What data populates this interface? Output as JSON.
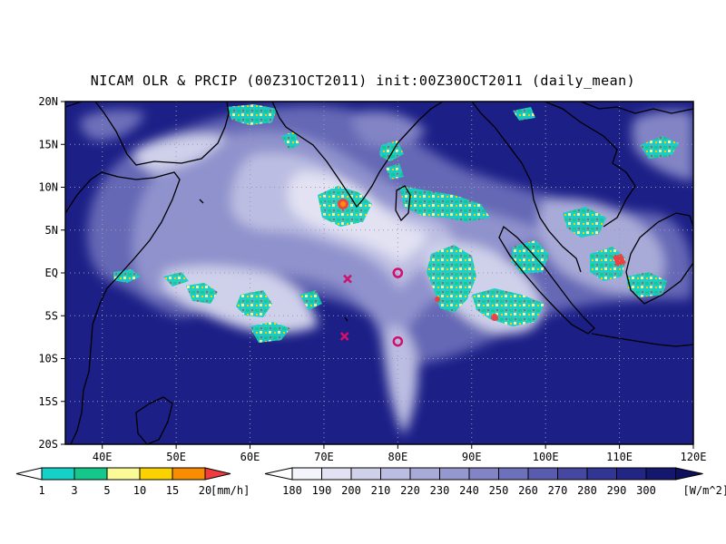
{
  "title": "NICAM OLR & PRCIP (00Z31OCT2011) init:00Z30OCT2011 (daily_mean)",
  "map": {
    "lat_labels": [
      "20N",
      "15N",
      "10N",
      "5N",
      "EQ",
      "5S",
      "10S",
      "15S",
      "20S"
    ],
    "lon_labels": [
      "40E",
      "50E",
      "60E",
      "70E",
      "80E",
      "90E",
      "100E",
      "110E",
      "120E"
    ],
    "lon_range": [
      35,
      120
    ],
    "lat_range": [
      -20,
      20
    ],
    "ocean_color": "#1c1f86",
    "markers": [
      {
        "symbol": "x",
        "lon": 73.2,
        "lat": -0.7,
        "color": "#d0106a"
      },
      {
        "symbol": "x",
        "lon": 72.8,
        "lat": -7.4,
        "color": "#d0106a"
      },
      {
        "symbol": "o",
        "lon": 80.0,
        "lat": 0.0,
        "color": "#d0106a"
      },
      {
        "symbol": "o",
        "lon": 80.0,
        "lat": -8.0,
        "color": "#d0106a"
      }
    ]
  },
  "precip_colorbar": {
    "labels": [
      "1",
      "3",
      "5",
      "10",
      "15",
      "20"
    ],
    "unit": "[mm/h]",
    "colors": [
      "#14d2c8",
      "#14c88c",
      "#fafa96",
      "#fad200",
      "#fa8c00",
      "#f03c3c"
    ]
  },
  "olr_colorbar": {
    "labels": [
      "180",
      "190",
      "200",
      "210",
      "220",
      "230",
      "240",
      "250",
      "260",
      "270",
      "280",
      "290",
      "300"
    ],
    "unit": "[W/m^2]",
    "colors": [
      "#f4f4fb",
      "#e2e2f3",
      "#cfd0ea",
      "#bcbde2",
      "#a8aad8",
      "#9597cf",
      "#8284c5",
      "#6d70ba",
      "#595cae",
      "#4547a1",
      "#323593",
      "#222583",
      "#15176f",
      "#0d0f5f"
    ]
  }
}
